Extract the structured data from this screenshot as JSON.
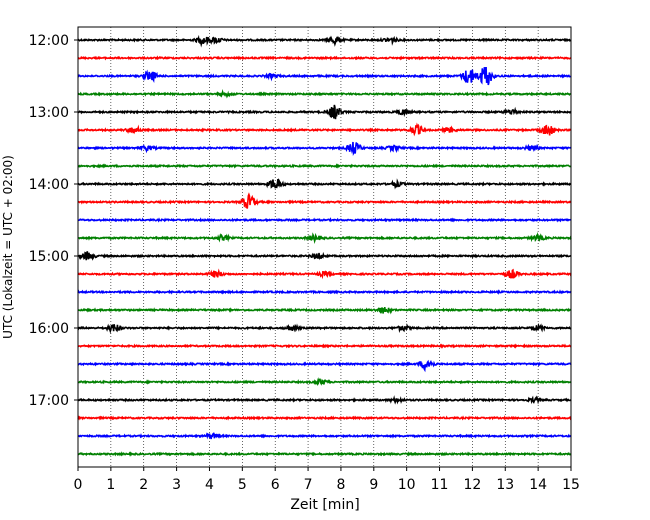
{
  "chart_data": {
    "type": "line",
    "title": "",
    "xlabel": "Zeit  [min]",
    "ylabel": "UTC (Lokalzeit = UTC + 02:00)",
    "xlim": [
      0,
      15
    ],
    "x_ticks": [
      0,
      1,
      2,
      3,
      4,
      5,
      6,
      7,
      8,
      9,
      10,
      11,
      12,
      13,
      14,
      15
    ],
    "grid": "vertical dotted",
    "y_tick_labels": [
      "12:00",
      "13:00",
      "14:00",
      "15:00",
      "16:00",
      "17:00"
    ],
    "colors": [
      "#000000",
      "#ff0000",
      "#0000ff",
      "#008000"
    ],
    "traces": [
      {
        "start": "12:00",
        "events": [
          [
            3.8,
            0.45
          ],
          [
            4.2,
            0.3
          ],
          [
            7.8,
            0.45
          ],
          [
            9.5,
            0.3
          ]
        ]
      },
      {
        "start": "12:15",
        "events": []
      },
      {
        "start": "12:30",
        "events": [
          [
            2.2,
            0.55
          ],
          [
            5.9,
            0.2
          ],
          [
            11.9,
            0.9
          ],
          [
            12.4,
            1.2
          ]
        ]
      },
      {
        "start": "12:45",
        "events": [
          [
            4.5,
            0.2
          ]
        ]
      },
      {
        "start": "13:00",
        "events": [
          [
            7.8,
            0.75
          ],
          [
            9.9,
            0.3
          ],
          [
            13.2,
            0.3
          ]
        ]
      },
      {
        "start": "13:15",
        "events": [
          [
            1.7,
            0.35
          ],
          [
            10.3,
            0.5
          ],
          [
            14.3,
            0.65
          ],
          [
            11.3,
            0.25
          ]
        ]
      },
      {
        "start": "13:30",
        "events": [
          [
            8.4,
            0.65
          ],
          [
            2.1,
            0.25
          ],
          [
            9.6,
            0.25
          ],
          [
            13.8,
            0.25
          ]
        ]
      },
      {
        "start": "13:45",
        "events": []
      },
      {
        "start": "14:00",
        "events": [
          [
            6.0,
            0.6
          ],
          [
            9.7,
            0.25
          ]
        ]
      },
      {
        "start": "14:15",
        "events": [
          [
            5.2,
            0.8
          ]
        ]
      },
      {
        "start": "14:30",
        "events": []
      },
      {
        "start": "14:45",
        "events": [
          [
            4.4,
            0.25
          ],
          [
            7.2,
            0.3
          ],
          [
            14.0,
            0.25
          ]
        ]
      },
      {
        "start": "15:00",
        "events": [
          [
            0.3,
            0.45
          ],
          [
            7.3,
            0.3
          ]
        ]
      },
      {
        "start": "15:15",
        "events": [
          [
            4.2,
            0.35
          ],
          [
            13.2,
            0.45
          ],
          [
            7.5,
            0.2
          ]
        ]
      },
      {
        "start": "15:30",
        "events": []
      },
      {
        "start": "15:45",
        "events": [
          [
            9.3,
            0.35
          ]
        ]
      },
      {
        "start": "16:00",
        "events": [
          [
            1.1,
            0.45
          ],
          [
            6.5,
            0.25
          ],
          [
            9.9,
            0.25
          ],
          [
            14.0,
            0.25
          ]
        ]
      },
      {
        "start": "16:15",
        "events": []
      },
      {
        "start": "16:30",
        "events": [
          [
            10.6,
            0.65
          ]
        ]
      },
      {
        "start": "16:45",
        "events": [
          [
            7.4,
            0.25
          ]
        ]
      },
      {
        "start": "17:00",
        "events": [
          [
            9.7,
            0.2
          ],
          [
            13.9,
            0.2
          ]
        ]
      },
      {
        "start": "17:15",
        "events": []
      },
      {
        "start": "17:30",
        "events": [
          [
            4.1,
            0.3
          ]
        ]
      },
      {
        "start": "17:45",
        "events": []
      }
    ]
  }
}
